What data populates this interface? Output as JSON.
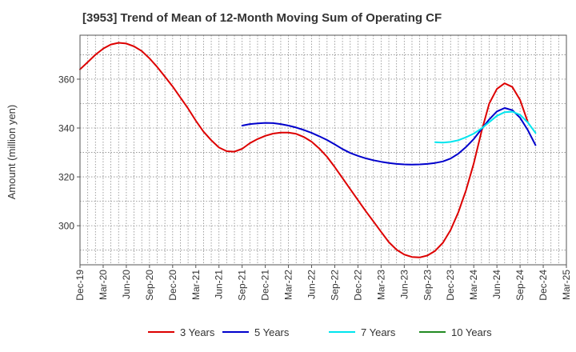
{
  "chart_data": {
    "type": "line",
    "title": "[3953]  Trend of Mean of 12-Month Moving Sum of Operating CF",
    "xlabel": "",
    "ylabel": "Amount (million yen)",
    "ylim": [
      284,
      378
    ],
    "yticks": [
      300,
      320,
      340,
      360
    ],
    "grid": true,
    "legend_position": "bottom",
    "x_tick_labels": [
      "Dec-19",
      "Mar-20",
      "Jun-20",
      "Sep-20",
      "Dec-20",
      "Mar-21",
      "Jun-21",
      "Sep-21",
      "Dec-21",
      "Mar-22",
      "Jun-22",
      "Sep-22",
      "Dec-22",
      "Mar-23",
      "Jun-23",
      "Sep-23",
      "Dec-23",
      "Mar-24",
      "Jun-24",
      "Sep-24",
      "Dec-24",
      "Mar-25"
    ],
    "series": [
      {
        "name": "3 Years",
        "color": "#dd0000",
        "start_month_index": 0,
        "values": [
          364,
          367,
          370,
          372.5,
          374.2,
          374.9,
          374.6,
          373.4,
          371.5,
          368.5,
          365,
          361,
          357,
          352.5,
          348,
          343,
          338.5,
          335,
          332,
          330.5,
          330.3,
          331.5,
          333.8,
          335.5,
          336.8,
          337.7,
          338.1,
          338.1,
          337.6,
          336.3,
          334.4,
          331.6,
          328.2,
          324,
          319.5,
          315,
          310.5,
          306,
          301.8,
          297.5,
          293.3,
          290.2,
          288.2,
          287.2,
          287,
          287.8,
          289.7,
          293,
          298.2,
          305.5,
          314.5,
          325.5,
          338.5,
          350,
          356,
          358.3,
          356.8,
          351.5,
          342.5
        ]
      },
      {
        "name": "5 Years",
        "color": "#0000cc",
        "start_month_index": 21,
        "values": [
          341,
          341.6,
          341.9,
          342.1,
          342,
          341.6,
          341,
          340.2,
          339.2,
          338,
          336.6,
          335.1,
          333.3,
          331.4,
          329.8,
          328.6,
          327.6,
          326.8,
          326.2,
          325.7,
          325.3,
          325.1,
          325,
          325.1,
          325.3,
          325.7,
          326.3,
          327.5,
          329.5,
          332.2,
          335.5,
          339.5,
          343.5,
          346.8,
          348.2,
          347.3,
          344.2,
          339.2,
          333
        ]
      },
      {
        "name": "7 Years",
        "color": "#00e5ee",
        "start_month_index": 46,
        "values": [
          334.2,
          334,
          334.3,
          335,
          336.2,
          337.7,
          339.8,
          342.4,
          345,
          346.5,
          346.7,
          345.4,
          342.3,
          338
        ]
      },
      {
        "name": "10 Years",
        "color": "#228b22",
        "start_month_index": 0,
        "values": []
      }
    ]
  }
}
